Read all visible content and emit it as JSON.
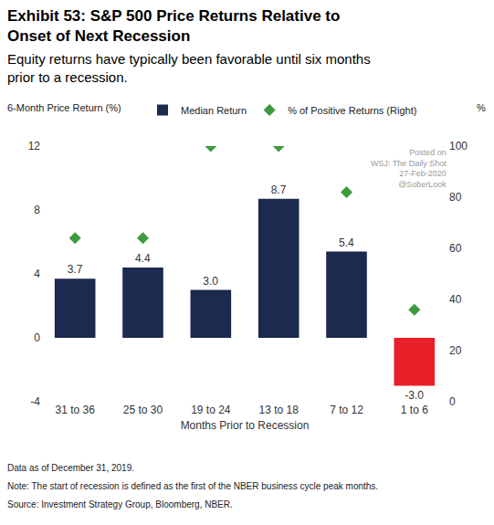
{
  "chart_data": {
    "type": "bar",
    "title": [
      "Exhibit 53: S&P 500 Price Returns Relative to",
      "Onset of Next Recession"
    ],
    "subtitle": [
      "Equity returns have typically been favorable until six months",
      "prior to a recession."
    ],
    "watermark": [
      "Posted on",
      "WSJ: The Daily Shot",
      "27-Feb-2020",
      "@SoberLook"
    ],
    "ylabel": "6-Month Price Return (%)",
    "y2label": "%",
    "xlabel": "Months Prior to Recession",
    "notes": [
      "Data as of December 31, 2019.",
      "Note: The start of recession is defined as the first of the NBER business cycle peak months.",
      "Source: Investment Strategy Group, Bloomberg, NBER."
    ],
    "categories": [
      "31 to 36",
      "25 to 30",
      "19 to 24",
      "13 to 18",
      "7 to 12",
      "1 to 6"
    ],
    "series": [
      {
        "name": "Median Return",
        "type": "bar",
        "colors": [
          "#1b2a4e",
          "#1b2a4e",
          "#1b2a4e",
          "#1b2a4e",
          "#1b2a4e",
          "#e8202a"
        ],
        "values": [
          3.7,
          4.4,
          3.0,
          8.7,
          5.4,
          -3.0
        ],
        "value_labels": [
          "3.7",
          "4.4",
          "3.0",
          "8.7",
          "5.4",
          "-3.0"
        ]
      },
      {
        "name": "% of Positive Returns (Right)",
        "type": "scatter",
        "marker": "diamond",
        "color": "#3d9a3d",
        "axis": "y2",
        "values": [
          64,
          64,
          100,
          100,
          82,
          36
        ]
      }
    ],
    "ylim": [
      -4,
      12
    ],
    "yticks": [
      -4,
      0,
      4,
      8,
      12
    ],
    "y2lim": [
      0,
      100
    ],
    "y2ticks": [
      0,
      20,
      40,
      60,
      80,
      100
    ],
    "grid": false,
    "data_labels": true,
    "legend": "top"
  }
}
